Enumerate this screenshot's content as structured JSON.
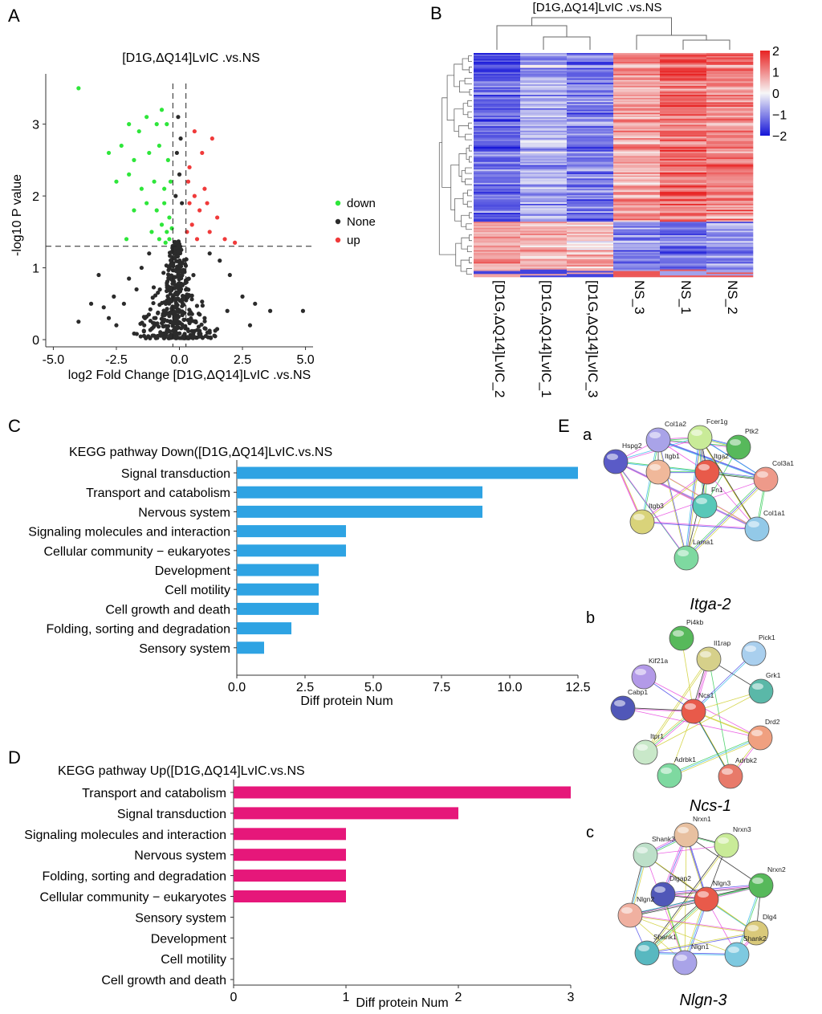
{
  "panel_labels": {
    "A": "A",
    "B": "B",
    "C": "C",
    "D": "D",
    "E": "E"
  },
  "network_sublabels": {
    "a": "a",
    "b": "b",
    "c": "c"
  },
  "colors": {
    "down": "#2ee63a",
    "none": "#2b2b2b",
    "up": "#f03a3a",
    "bar_down": "#2ea3e3",
    "bar_up": "#e6177a",
    "heat_low": "#1515d8",
    "heat_mid": "#f7f7f7",
    "heat_high": "#e82222"
  },
  "chart_data": [
    {
      "id": "volcano",
      "type": "scatter",
      "title": "[D1G,ΔQ14]LvIC .vs.NS",
      "xlabel": "log2 Fold Change [D1G,ΔQ14]LvIC .vs.NS",
      "ylabel": "-log10 P value",
      "xlim": [
        -5.3,
        5.3
      ],
      "ylim": [
        -0.1,
        3.7
      ],
      "xticks": [
        -5.0,
        -2.5,
        0.0,
        2.5,
        5.0
      ],
      "xtick_labels": [
        "-5.0",
        "-2.5",
        "0.0",
        "2.5",
        "5.0"
      ],
      "yticks": [
        0,
        1,
        2,
        3
      ],
      "ytick_labels": [
        "0",
        "1",
        "2",
        "3"
      ],
      "thresholds": {
        "x": [
          -0.26,
          0.26
        ],
        "y": 1.3
      },
      "legend": [
        "down",
        "None",
        "up"
      ],
      "points": {
        "down": [
          [
            -4.0,
            3.5
          ],
          [
            -2.0,
            3.0
          ],
          [
            -1.6,
            2.9
          ],
          [
            -1.3,
            3.1
          ],
          [
            -0.9,
            3.0
          ],
          [
            -0.7,
            3.2
          ],
          [
            -0.5,
            3.0
          ],
          [
            -2.8,
            2.6
          ],
          [
            -2.3,
            2.7
          ],
          [
            -1.8,
            2.5
          ],
          [
            -1.2,
            2.6
          ],
          [
            -0.8,
            2.7
          ],
          [
            -0.45,
            2.5
          ],
          [
            -2.5,
            2.2
          ],
          [
            -2.0,
            2.3
          ],
          [
            -1.5,
            2.1
          ],
          [
            -1.0,
            2.2
          ],
          [
            -0.6,
            2.1
          ],
          [
            -0.35,
            2.2
          ],
          [
            -1.8,
            1.8
          ],
          [
            -1.3,
            1.9
          ],
          [
            -0.9,
            1.8
          ],
          [
            -0.6,
            1.9
          ],
          [
            -0.4,
            1.7
          ],
          [
            -0.5,
            1.5
          ],
          [
            -0.7,
            1.6
          ],
          [
            -1.1,
            1.5
          ],
          [
            -0.4,
            1.4
          ],
          [
            -0.3,
            1.55
          ],
          [
            -0.55,
            1.35
          ],
          [
            -2.1,
            1.4
          ],
          [
            -0.8,
            1.4
          ]
        ],
        "up": [
          [
            0.4,
            2.4
          ],
          [
            0.6,
            2.0
          ],
          [
            0.8,
            1.8
          ],
          [
            1.0,
            2.1
          ],
          [
            1.2,
            1.5
          ],
          [
            1.5,
            1.7
          ],
          [
            0.5,
            1.6
          ],
          [
            0.7,
            1.4
          ],
          [
            0.9,
            2.6
          ],
          [
            1.3,
            2.8
          ],
          [
            0.4,
            1.9
          ],
          [
            1.8,
            1.4
          ],
          [
            2.2,
            1.35
          ],
          [
            0.3,
            1.5
          ],
          [
            0.6,
            2.9
          ],
          [
            1.1,
            1.9
          ],
          [
            0.35,
            2.2
          ]
        ],
        "none": [
          [
            -4.0,
            0.25
          ],
          [
            -3.5,
            0.5
          ],
          [
            -3.0,
            0.45
          ],
          [
            -2.6,
            0.6
          ],
          [
            -2.2,
            0.5
          ],
          [
            -2.0,
            0.85
          ],
          [
            -1.7,
            0.7
          ],
          [
            -3.2,
            0.9
          ],
          [
            -2.8,
            0.3
          ],
          [
            3.0,
            0.5
          ],
          [
            3.6,
            0.4
          ],
          [
            4.9,
            0.4
          ],
          [
            2.5,
            0.6
          ],
          [
            2.0,
            0.9
          ],
          [
            1.6,
            1.1
          ],
          [
            1.9,
            0.4
          ],
          [
            -1.5,
            1.0
          ],
          [
            -1.2,
            1.2
          ],
          [
            1.2,
            1.2
          ],
          [
            -0.05,
            3.1
          ],
          [
            0.05,
            2.8
          ],
          [
            -0.1,
            2.6
          ],
          [
            0.0,
            2.3
          ],
          [
            -0.15,
            2.0
          ],
          [
            0.1,
            1.9
          ],
          [
            -1.0,
            0.3
          ],
          [
            1.0,
            0.3
          ],
          [
            2.8,
            0.2
          ],
          [
            -2.5,
            0.2
          ]
        ]
      },
      "none_cloud_count": 420
    },
    {
      "id": "heatmap",
      "type": "heatmap",
      "title": "[D1G,ΔQ14]LvIC .vs.NS",
      "columns": [
        "[D1G,ΔQ14]LvIC_2",
        "[D1G,ΔQ14]LvIC_1",
        "[D1G,ΔQ14]LvIC_3",
        "NS_3",
        "NS_1",
        "NS_2"
      ],
      "row_count": 150,
      "colorbar": {
        "min": -2,
        "max": 2,
        "ticks": [
          2,
          1,
          0,
          -1,
          -2
        ],
        "tick_labels": [
          "2",
          "1",
          "0",
          "−1",
          "−2"
        ]
      },
      "column_means": {
        "upper_block": [
          -1.3,
          -0.7,
          -1.1,
          0.8,
          1.3,
          1.1
        ],
        "lower_block": [
          0.8,
          0.6,
          0.5,
          -0.9,
          -1.2,
          -0.9
        ]
      },
      "lower_block_start_fraction": 0.75
    },
    {
      "id": "kegg_down",
      "type": "bar",
      "orientation": "horizontal",
      "title": "KEGG pathway  Down([D1G,ΔQ14]LvIC.vs.NS",
      "categories": [
        "Signal transduction",
        "Transport and catabolism",
        "Nervous system",
        "Signaling molecules and interaction",
        "Cellular community − eukaryotes",
        "Development",
        "Cell motility",
        "Cell growth and death",
        "Folding, sorting and degradation",
        "Sensory system"
      ],
      "values": [
        12.5,
        9,
        9,
        4,
        4,
        3,
        3,
        3,
        2,
        1
      ],
      "xlabel": "Diff protein Num",
      "xlim": [
        0,
        12.5
      ],
      "xticks": [
        0,
        2.5,
        5,
        7.5,
        10,
        12.5
      ],
      "xtick_labels": [
        "0.0",
        "2.5",
        "5.0",
        "7.5",
        "10.0",
        "12.5"
      ]
    },
    {
      "id": "kegg_up",
      "type": "bar",
      "orientation": "horizontal",
      "title": "KEGG pathway  Up([D1G,ΔQ14]LvIC.vs.NS",
      "categories": [
        "Transport and catabolism",
        "Signal transduction",
        "Signaling molecules and interaction",
        "Nervous system",
        "Folding, sorting and degradation",
        "Cellular community − eukaryotes",
        "Sensory system",
        "Development",
        "Cell motility",
        "Cell growth and death"
      ],
      "values": [
        3,
        2,
        1,
        1,
        1,
        1,
        0,
        0,
        0,
        0
      ],
      "xlabel": "Diff protein Num",
      "xlim": [
        0,
        3
      ],
      "xticks": [
        0,
        1,
        2,
        3
      ],
      "xtick_labels": [
        "0",
        "1",
        "2",
        "3"
      ]
    }
  ],
  "networks": [
    {
      "label": "Itga-2",
      "nodes": [
        {
          "name": "Col1a2",
          "color": "#a9a3e8"
        },
        {
          "name": "Fcer1g",
          "color": "#c9eb98"
        },
        {
          "name": "Ptk2",
          "color": "#57b95b"
        },
        {
          "name": "Hspg2",
          "color": "#5a5bc7"
        },
        {
          "name": "Itga2",
          "color": "#e85a4a"
        },
        {
          "name": "Col3a1",
          "color": "#ee9a8a"
        },
        {
          "name": "Itgb1",
          "color": "#f0b89a"
        },
        {
          "name": "Fn1",
          "color": "#58c8b8"
        },
        {
          "name": "Itgb3",
          "color": "#d9d37a"
        },
        {
          "name": "Col1a1",
          "color": "#93c9e8"
        },
        {
          "name": "Lama1",
          "color": "#7ed9a0"
        }
      ]
    },
    {
      "label": "Ncs-1",
      "nodes": [
        {
          "name": "Pi4kb",
          "color": "#57b95b"
        },
        {
          "name": "Il1rap",
          "color": "#d6d08a"
        },
        {
          "name": "Pick1",
          "color": "#a9cfee"
        },
        {
          "name": "Kif21a",
          "color": "#b39ae8"
        },
        {
          "name": "Grk1",
          "color": "#5ab8a8"
        },
        {
          "name": "Cabp1",
          "color": "#5057b8"
        },
        {
          "name": "Ncs1",
          "color": "#e85a4a"
        },
        {
          "name": "Drd2",
          "color": "#f0a080"
        },
        {
          "name": "Itpr1",
          "color": "#c9e8c9"
        },
        {
          "name": "Adrbk1",
          "color": "#7ed9a0"
        },
        {
          "name": "Adrbk2",
          "color": "#e87a6a"
        }
      ]
    },
    {
      "label": "Nlgn-3",
      "nodes": [
        {
          "name": "Nrxn1",
          "color": "#e8c0a0"
        },
        {
          "name": "Nrxn3",
          "color": "#c9eb98"
        },
        {
          "name": "Shank3",
          "color": "#bde0c9"
        },
        {
          "name": "Nrxn2",
          "color": "#57b95b"
        },
        {
          "name": "Dlgap2",
          "color": "#5057b8"
        },
        {
          "name": "Nlgn3",
          "color": "#e85a4a"
        },
        {
          "name": "Nlgn2",
          "color": "#f0b0a0"
        },
        {
          "name": "Dlg4",
          "color": "#d9c97a"
        },
        {
          "name": "Shank1",
          "color": "#58b8c0"
        },
        {
          "name": "Shank2",
          "color": "#7ec9e0"
        },
        {
          "name": "Nlgn1",
          "color": "#a9a3e8"
        }
      ]
    }
  ]
}
